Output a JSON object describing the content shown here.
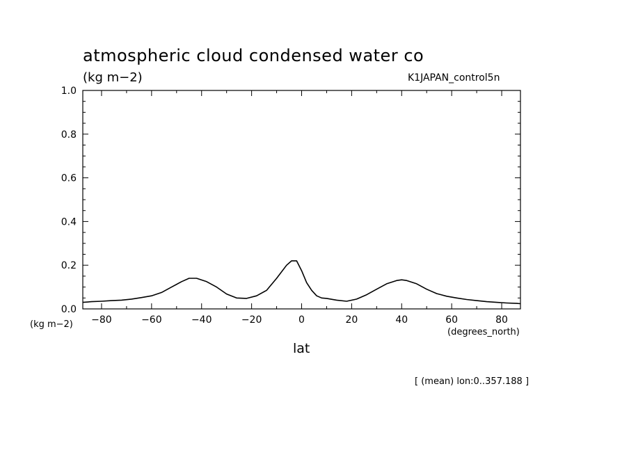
{
  "chart_data": {
    "type": "line",
    "title": "atmospheric cloud condensed water co",
    "units_label": "(kg m−2)",
    "run_label": "K1JAPAN_control5n",
    "ylabel": "(kg m−2)",
    "xlabel": "lat",
    "x_units": "(degrees_north)",
    "note": "[ (mean) lon:0..357.188 ]",
    "xlim": [
      -87.5,
      87.5
    ],
    "ylim": [
      0.0,
      1.0
    ],
    "x_ticks": [
      -80,
      -60,
      -40,
      -20,
      0,
      20,
      40,
      60,
      80
    ],
    "x_tick_labels": [
      "−80",
      "−60",
      "−40",
      "−20",
      "0",
      "20",
      "40",
      "60",
      "80"
    ],
    "y_ticks": [
      0.0,
      0.2,
      0.4,
      0.6,
      0.8,
      1.0
    ],
    "y_tick_labels": [
      "0.0",
      "0.2",
      "0.4",
      "0.6",
      "0.8",
      "1.0"
    ],
    "grid": false,
    "series": [
      {
        "x": [
          -87.5,
          -84,
          -80,
          -76,
          -72,
          -68,
          -64,
          -60,
          -56,
          -52,
          -48,
          -45,
          -42,
          -38,
          -34,
          -30,
          -26,
          -22,
          -18,
          -14,
          -10,
          -6,
          -4,
          -2,
          0,
          2,
          4,
          6,
          8,
          10,
          14,
          18,
          22,
          26,
          30,
          34,
          38,
          40,
          42,
          46,
          50,
          54,
          58,
          62,
          66,
          70,
          74,
          78,
          82,
          86,
          87.5
        ],
        "y": [
          0.03,
          0.033,
          0.035,
          0.038,
          0.04,
          0.045,
          0.052,
          0.06,
          0.075,
          0.1,
          0.125,
          0.14,
          0.14,
          0.125,
          0.1,
          0.068,
          0.05,
          0.048,
          0.06,
          0.085,
          0.14,
          0.2,
          0.22,
          0.22,
          0.175,
          0.12,
          0.085,
          0.06,
          0.05,
          0.048,
          0.04,
          0.035,
          0.045,
          0.065,
          0.09,
          0.115,
          0.13,
          0.133,
          0.13,
          0.115,
          0.09,
          0.07,
          0.058,
          0.05,
          0.043,
          0.038,
          0.033,
          0.03,
          0.027,
          0.025,
          0.024
        ]
      }
    ]
  }
}
